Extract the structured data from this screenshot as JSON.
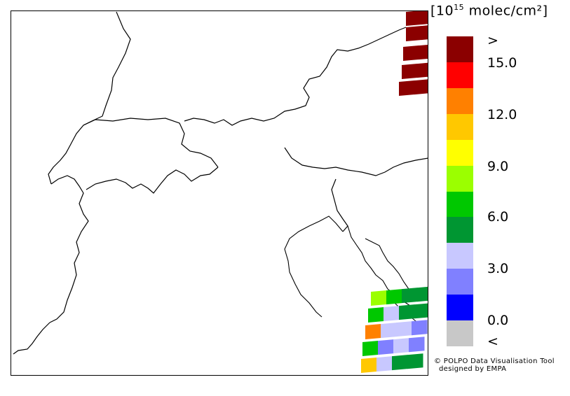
{
  "legend": {
    "title_prefix": "[10",
    "title_exp": "15",
    "title_suffix": " molec/cm²]",
    "upper_marker": ">",
    "lower_marker": "<",
    "ticks": [
      "15.0",
      "12.0",
      "9.0",
      "6.0",
      "3.0",
      "0.0"
    ],
    "colors": [
      "#8b0000",
      "#ff0000",
      "#ff8000",
      "#ffc800",
      "#ffff00",
      "#9bff00",
      "#00c800",
      "#009632",
      "#c8c8ff",
      "#8080ff",
      "#0000ff",
      "#c8c8c8"
    ]
  },
  "credit": {
    "line1": "© POLPO Data Visualisation Tool",
    "line2": "designed by EMPA"
  }
}
